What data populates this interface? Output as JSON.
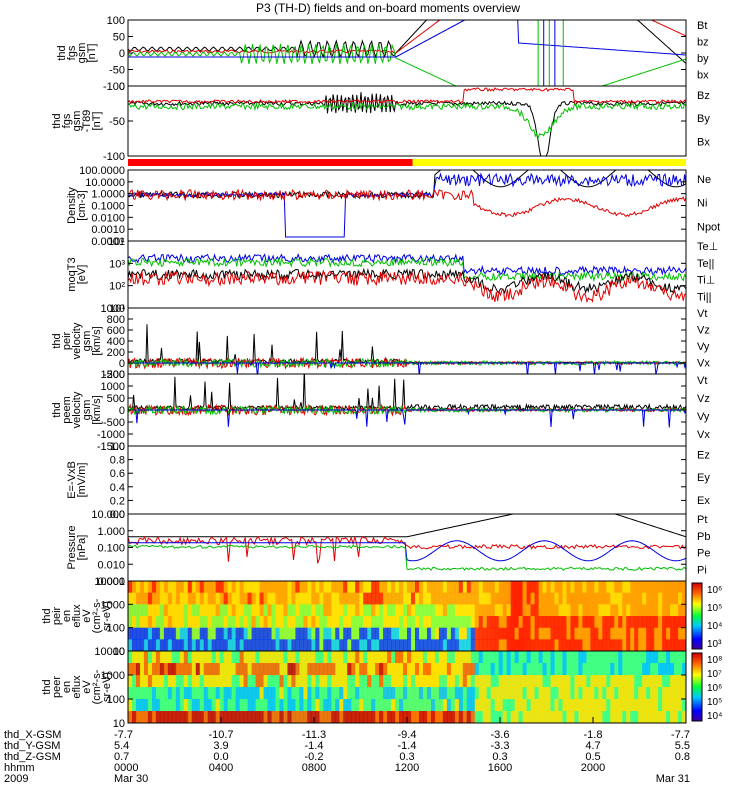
{
  "title": "P3 (TH-D) fields and on-board moments overview",
  "colors": {
    "black": "#000000",
    "red": "#e00000",
    "green": "#00c000",
    "blue": "#0000e0"
  },
  "chart_data": [
    {
      "type": "line",
      "panel": "fgs",
      "ylabel": [
        "thd",
        "fgs",
        "gsm",
        "[nT]"
      ],
      "yticks": [
        "100",
        "50",
        "0",
        "-50",
        "-100"
      ],
      "ylim": [
        -100,
        100
      ],
      "legend": [
        {
          "name": "Bt",
          "color": "#000000"
        },
        {
          "name": "bz",
          "color": "#e00000"
        },
        {
          "name": "by",
          "color": "#00c000"
        },
        {
          "name": "bx",
          "color": "#0000e0"
        }
      ]
    },
    {
      "type": "line",
      "panel": "fgs-t89",
      "ylabel": [
        "thd",
        "fgs",
        "gsm",
        "-T89",
        "[nT]"
      ],
      "yticks": [
        "0",
        "-50",
        "-100"
      ],
      "ylim": [
        -120,
        25
      ],
      "legend": [
        {
          "name": "Bz",
          "color": "#e00000"
        },
        {
          "name": "By",
          "color": "#00c000"
        },
        {
          "name": "Bx",
          "color": "#000000"
        }
      ]
    },
    {
      "type": "line",
      "panel": "density",
      "ylabel": [
        "Density",
        "[cm-3]"
      ],
      "yticks": [
        "100.0000",
        "10.0000",
        "1.0000",
        "0.1000",
        "0.0100",
        "0.0010",
        "0.0001"
      ],
      "log": true,
      "ylim": [
        0.0001,
        100
      ],
      "legend": [
        {
          "name": "Ne",
          "color": "#e00000"
        },
        {
          "name": "Ni",
          "color": "#000000"
        },
        {
          "name": "Npot",
          "color": "#0000e0"
        }
      ]
    },
    {
      "type": "line",
      "panel": "temperature",
      "ylabel": [
        "moqT3",
        "[eV]"
      ],
      "yticks": [
        "10⁴",
        "10³",
        "10²",
        "10¹"
      ],
      "log": true,
      "ylim": [
        10,
        30000
      ],
      "legend": [
        {
          "name": "Te⊥",
          "color": "#e00000"
        },
        {
          "name": "Te||",
          "color": "#000000"
        },
        {
          "name": "Ti⊥",
          "color": "#000000"
        },
        {
          "name": "Ti||",
          "color": "#00c000"
        }
      ]
    },
    {
      "type": "line",
      "panel": "peir-velocity",
      "ylabel": [
        "thd",
        "peir",
        "velocity",
        "gsm",
        "[km/s]"
      ],
      "yticks": [
        "1000",
        "800",
        "600",
        "400",
        "200",
        "0",
        "-200"
      ],
      "ylim": [
        -200,
        1000
      ],
      "legend": [
        {
          "name": "Vt",
          "color": "#000000"
        },
        {
          "name": "Vz",
          "color": "#e00000"
        },
        {
          "name": "Vy",
          "color": "#00c000"
        },
        {
          "name": "Vx",
          "color": "#0000e0"
        }
      ]
    },
    {
      "type": "line",
      "panel": "peem-velocity",
      "ylabel": [
        "thd",
        "peem",
        "velocity",
        "gsm",
        "[km/s]"
      ],
      "yticks": [
        "1500",
        "1000",
        "500",
        "0",
        "-500",
        "-1000",
        "-1500"
      ],
      "ylim": [
        -1500,
        1500
      ],
      "legend": [
        {
          "name": "Vt",
          "color": "#000000"
        },
        {
          "name": "Vz",
          "color": "#e00000"
        },
        {
          "name": "Vy",
          "color": "#00c000"
        },
        {
          "name": "Vx",
          "color": "#0000e0"
        }
      ]
    },
    {
      "type": "line",
      "panel": "efield",
      "ylabel": [
        "E=-VxB",
        "[mV/m]"
      ],
      "yticks": [
        "1.0",
        "0.8",
        "0.6",
        "0.4",
        "0.2",
        "0.0"
      ],
      "ylim": [
        0,
        1
      ],
      "legend": [
        {
          "name": "Ez",
          "color": "#e00000"
        },
        {
          "name": "Ey",
          "color": "#00c000"
        },
        {
          "name": "Ex",
          "color": "#0000e0"
        }
      ]
    },
    {
      "type": "line",
      "panel": "pressure",
      "ylabel": [
        "Pressure",
        "[nPa]"
      ],
      "yticks": [
        "10.000",
        "1.000",
        "0.100",
        "0.010",
        "0.001"
      ],
      "log": true,
      "ylim": [
        0.0006,
        30
      ],
      "legend": [
        {
          "name": "Pt",
          "color": "#000000"
        },
        {
          "name": "Pb",
          "color": "#e00000"
        },
        {
          "name": "Pe",
          "color": "#00c000"
        },
        {
          "name": "Pi",
          "color": "#0000e0"
        }
      ]
    },
    {
      "type": "heatmap",
      "panel": "peir-spec",
      "ylabel": [
        "thd",
        "peir",
        "en",
        "eflux",
        "eV",
        "(cm²-s-",
        "sr-eV)"
      ],
      "yticks": [
        "10000",
        "1000",
        "100",
        "10"
      ],
      "log": true,
      "colorbar": [
        "10⁶",
        "10⁵",
        "10⁴",
        "10³"
      ]
    },
    {
      "type": "heatmap",
      "panel": "peer-spec",
      "ylabel": [
        "thd",
        "peer",
        "en",
        "eflux",
        "eV",
        "(cm²-s-",
        "sr-eV)"
      ],
      "yticks": [
        "10000",
        "1000",
        "100",
        "10"
      ],
      "log": true,
      "colorbar": [
        "10⁸",
        "10⁷",
        "10⁶",
        "10⁵",
        "10⁴"
      ]
    }
  ],
  "axis": {
    "rows": [
      {
        "label": "thd_X-GSM",
        "values": [
          "-7.7",
          "-10.7",
          "-11.3",
          "-9.4",
          "-3.6",
          "-1.8",
          "-7.7"
        ]
      },
      {
        "label": "thd_Y-GSM",
        "values": [
          "5.4",
          "3.9",
          "-1.4",
          "-1.4",
          "-3.3",
          "4.7",
          "5.5"
        ]
      },
      {
        "label": "thd_Z-GSM",
        "values": [
          "0.7",
          "0.0",
          "-0.2",
          "0.3",
          "0.3",
          "0.5",
          "0.8"
        ]
      },
      {
        "label": "hhmm",
        "values": [
          "0000",
          "0400",
          "0800",
          "1200",
          "1600",
          "2000",
          ""
        ]
      },
      {
        "label": "2009",
        "values": [
          "Mar 30",
          "",
          "",
          "",
          "",
          "",
          "Mar 31"
        ]
      }
    ]
  }
}
